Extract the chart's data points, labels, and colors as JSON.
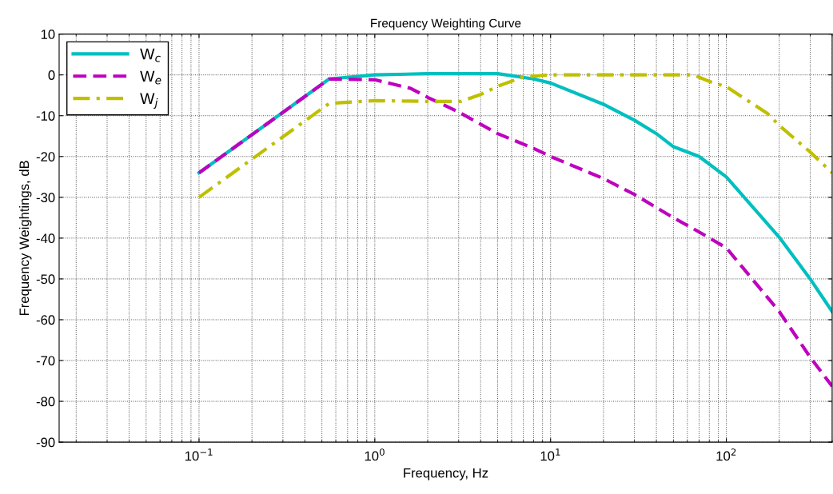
{
  "chart_data": {
    "type": "line",
    "title": "Frequency Weighting Curve",
    "xlabel": "Frequency, Hz",
    "ylabel": "Frequency Weightings, dB",
    "log": "x",
    "grid": true,
    "legend": "top left",
    "xlim": [
      0.016,
      400
    ],
    "ylim": [
      -90,
      10
    ],
    "xticks": [
      {
        "value": 0.1,
        "label": "10$^{−1}$"
      },
      {
        "value": 1,
        "label": "10$^{0}$"
      },
      {
        "value": 10,
        "label": "10$^{1}$"
      },
      {
        "value": 100,
        "label": "10$^{2}$"
      }
    ],
    "yticks": [
      -90,
      -80,
      -70,
      -60,
      -50,
      -40,
      -30,
      -20,
      -10,
      0,
      10
    ],
    "series": [
      {
        "name": "W$_{c}$",
        "color": "#00bfbf",
        "line_style": "solid",
        "x": [
          0.1,
          0.55,
          1,
          2,
          5,
          8,
          10,
          20,
          30,
          40,
          50,
          70,
          100,
          200,
          300,
          400
        ],
        "values": [
          -24,
          -1,
          0,
          0.3,
          0.3,
          -1,
          -2,
          -7.2,
          -11.1,
          -14.4,
          -17.6,
          -20,
          -25,
          -39.8,
          -50,
          -58
        ]
      },
      {
        "name": "W$_{e}$",
        "color": "#bf00bf",
        "line_style": "dashed",
        "x": [
          0.1,
          0.55,
          1,
          1.6,
          2,
          3,
          5,
          8,
          10,
          20,
          30,
          50,
          70,
          100,
          200,
          300,
          400
        ],
        "values": [
          -24,
          -1,
          -1.2,
          -3.3,
          -5.5,
          -9.1,
          -14.4,
          -18,
          -20,
          -25.4,
          -29.3,
          -35,
          -38.5,
          -42.4,
          -58,
          -69.2,
          -76.3
        ]
      },
      {
        "name": "W$_{j}$",
        "color": "#bfbf00",
        "line_style": "dashdot",
        "x": [
          0.1,
          0.55,
          1,
          2,
          3.1,
          4,
          5,
          7,
          10,
          30,
          65,
          80,
          100,
          172,
          200,
          300,
          400
        ],
        "values": [
          -30,
          -7,
          -6.3,
          -6.5,
          -6.5,
          -4.8,
          -2.8,
          -0.5,
          0,
          0,
          0,
          -1.6,
          -2.9,
          -9.5,
          -12.4,
          -18.9,
          -24
        ]
      }
    ]
  }
}
